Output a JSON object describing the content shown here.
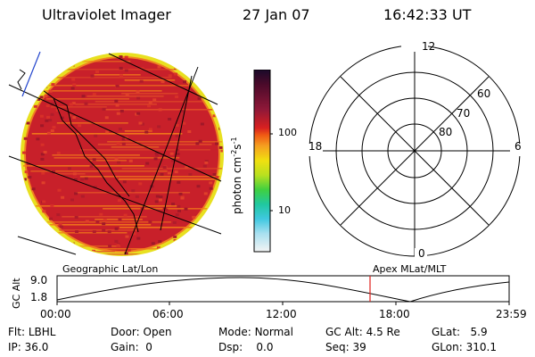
{
  "header": {
    "instrument": "Ultraviolet Imager",
    "date": "27 Jan 07",
    "time": "16:42:33 UT"
  },
  "colorbar": {
    "unit_label": "photon cm",
    "unit_exp1": "-2",
    "unit_s": "s",
    "unit_exp2": "-1",
    "ticks": [
      "100",
      "10"
    ]
  },
  "polar_plot": {
    "mlt_labels": {
      "top": "12",
      "left": "18",
      "right": "6",
      "bottom": "0"
    },
    "mlat_labels": [
      "60",
      "70",
      "80"
    ]
  },
  "orbit": {
    "left_title": "Geographic Lat/Lon",
    "right_title": "Apex MLat/MLT",
    "ylabel": "GC Alt",
    "y_ticks": [
      "9.0",
      "1.8"
    ],
    "x_ticks": [
      "00:00",
      "06:00",
      "12:00",
      "18:00",
      "23:59"
    ],
    "marker_color": "#e0201c"
  },
  "status": {
    "col1": [
      {
        "label": "Flt:",
        "value": "LBHL"
      },
      {
        "label": "IP:",
        "value": "36.0"
      }
    ],
    "col2": [
      {
        "label": "Door:",
        "value": "Open"
      },
      {
        "label": "Gain:",
        "value": "0"
      }
    ],
    "col3": [
      {
        "label": "Mode:",
        "value": "Normal"
      },
      {
        "label": "Dsp:",
        "value": "0.0"
      }
    ],
    "col4": [
      {
        "label": "GC Alt:",
        "value": "4.5 Re"
      },
      {
        "label": "Seq:",
        "value": "39"
      }
    ],
    "col5": [
      {
        "label": "GLat:",
        "value": "5.9"
      },
      {
        "label": "GLon:",
        "value": "310.1"
      }
    ]
  },
  "colors": {
    "image_base": "#c8202a",
    "stripe_orange": "#f27a1a",
    "rim_yellow": "#e8e020"
  }
}
